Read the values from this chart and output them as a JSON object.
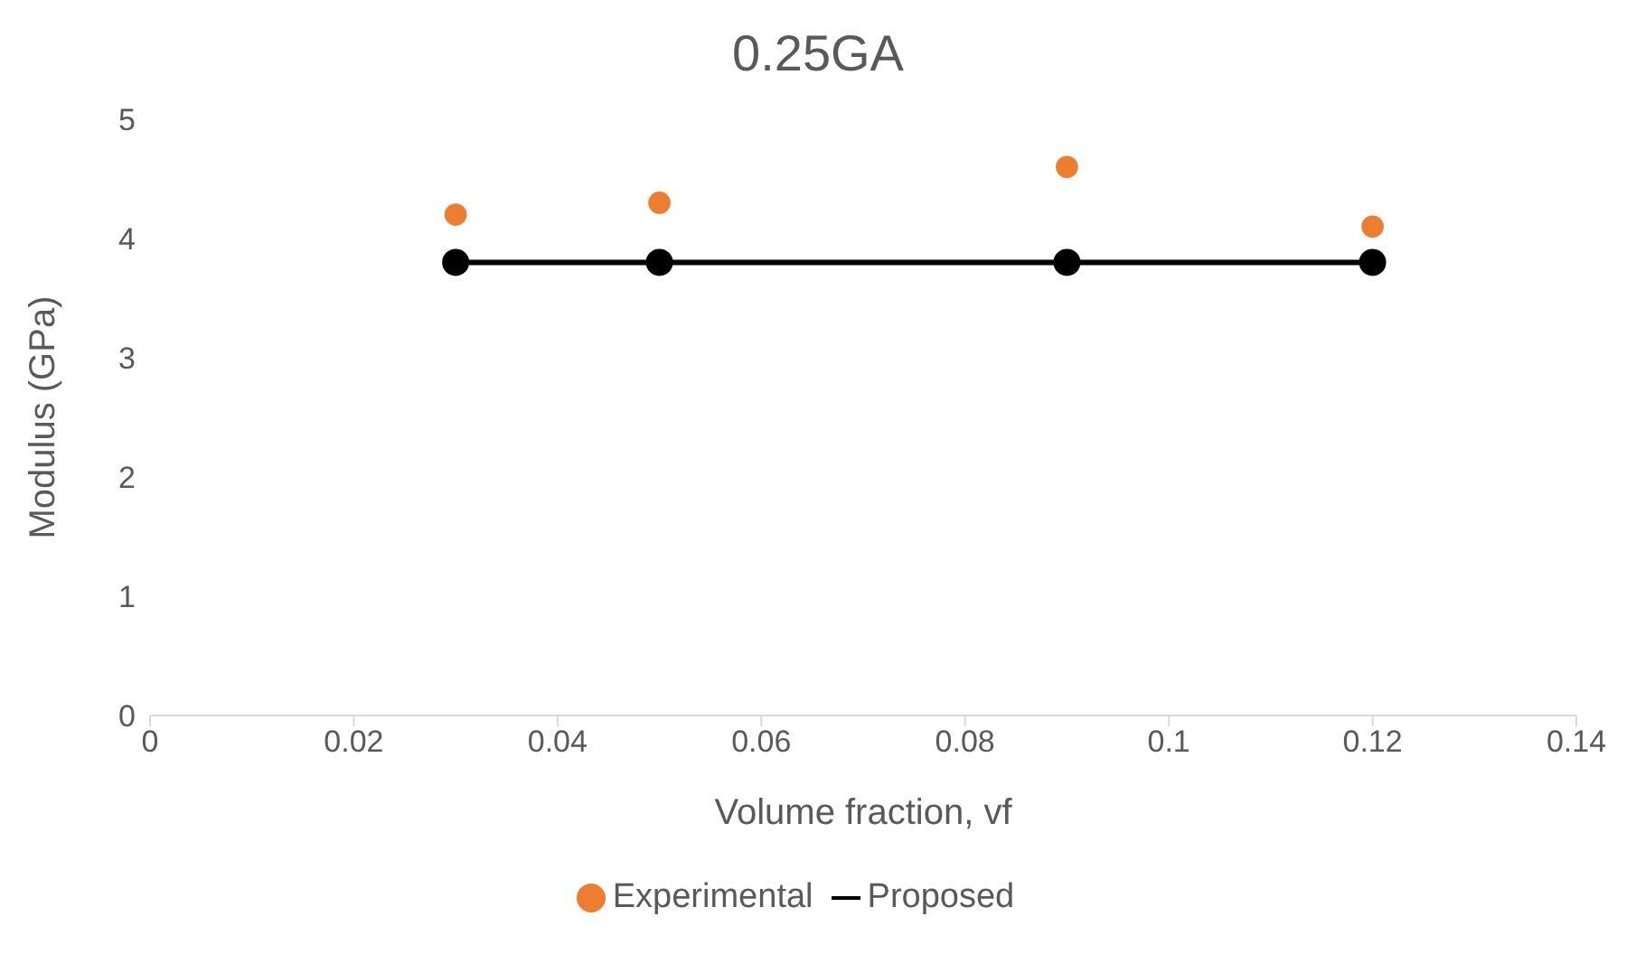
{
  "chart_data": {
    "type": "scatter",
    "title": "0.25GA",
    "xlabel": "Volume fraction, vf",
    "ylabel": "Modulus (GPa)",
    "xlim": [
      0,
      0.14
    ],
    "xticks": [
      0,
      0.02,
      0.04,
      0.06,
      0.08,
      0.1,
      0.12,
      0.14
    ],
    "ylim": [
      0,
      5
    ],
    "yticks": [
      0,
      1,
      2,
      3,
      4,
      5
    ],
    "grid": false,
    "legend": "bottom",
    "marker": "circle",
    "series": [
      {
        "name": "Experimental",
        "color": "#ed7d31",
        "x": [
          0.03,
          0.05,
          0.09,
          0.12
        ],
        "values": [
          4.2,
          4.3,
          4.6,
          4.1
        ]
      },
      {
        "name": "Proposed",
        "type": "line",
        "color": "#000000",
        "x": [
          0.03,
          0.05,
          0.09,
          0.12
        ],
        "values": [
          3.8,
          3.8,
          3.8,
          3.8
        ]
      }
    ]
  }
}
